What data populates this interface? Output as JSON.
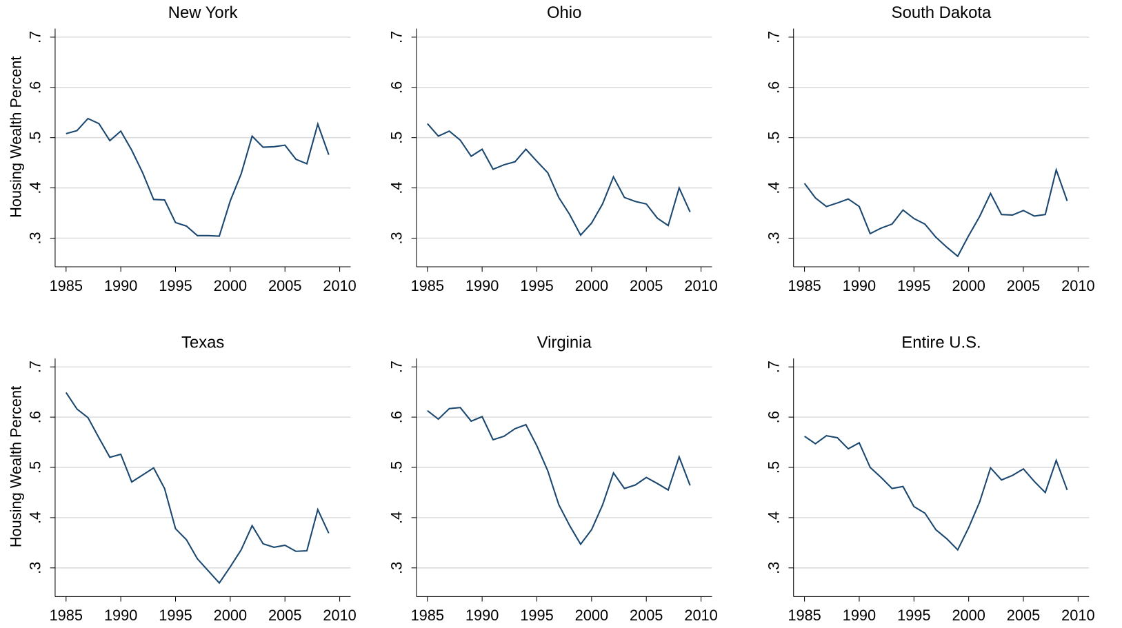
{
  "chart_data": [
    {
      "type": "line",
      "title": "New York",
      "ylabel": "Housing Wealth Percent",
      "color": "#1a476f",
      "grid": true,
      "x": [
        1985,
        1986,
        1987,
        1988,
        1989,
        1990,
        1991,
        1992,
        1993,
        1994,
        1995,
        1996,
        1997,
        1998,
        1999,
        2000,
        2001,
        2002,
        2003,
        2004,
        2005,
        2006,
        2007,
        2008,
        2009
      ],
      "values": [
        0.508,
        0.514,
        0.538,
        0.528,
        0.494,
        0.513,
        0.475,
        0.43,
        0.377,
        0.376,
        0.331,
        0.324,
        0.305,
        0.305,
        0.304,
        0.374,
        0.428,
        0.503,
        0.481,
        0.482,
        0.485,
        0.457,
        0.448,
        0.527,
        0.466
      ],
      "xlim": [
        1984,
        2011
      ],
      "xticks": [
        1985,
        1990,
        1995,
        2000,
        2005,
        2010
      ],
      "ylim": [
        0.243,
        0.717
      ],
      "yticks": [
        {
          "value": 0.3,
          "label": ".3"
        },
        {
          "value": 0.4,
          "label": ".4"
        },
        {
          "value": 0.5,
          "label": ".5"
        },
        {
          "value": 0.6,
          "label": ".6"
        },
        {
          "value": 0.7,
          "label": ".7"
        }
      ]
    },
    {
      "type": "line",
      "title": "Ohio",
      "color": "#1a476f",
      "grid": true,
      "x": [
        1985,
        1986,
        1987,
        1988,
        1989,
        1990,
        1991,
        1992,
        1993,
        1994,
        1995,
        1996,
        1997,
        1998,
        1999,
        2000,
        2001,
        2002,
        2003,
        2004,
        2005,
        2006,
        2007,
        2008,
        2009
      ],
      "values": [
        0.528,
        0.503,
        0.513,
        0.495,
        0.463,
        0.477,
        0.437,
        0.446,
        0.452,
        0.477,
        0.453,
        0.43,
        0.381,
        0.347,
        0.306,
        0.33,
        0.368,
        0.422,
        0.381,
        0.373,
        0.368,
        0.34,
        0.325,
        0.4,
        0.352
      ],
      "xlim": [
        1984,
        2011
      ],
      "xticks": [
        1985,
        1990,
        1995,
        2000,
        2005,
        2010
      ],
      "ylim": [
        0.243,
        0.717
      ],
      "yticks": [
        {
          "value": 0.3,
          "label": ".3"
        },
        {
          "value": 0.4,
          "label": ".4"
        },
        {
          "value": 0.5,
          "label": ".5"
        },
        {
          "value": 0.6,
          "label": ".6"
        },
        {
          "value": 0.7,
          "label": ".7"
        }
      ]
    },
    {
      "type": "line",
      "title": "South Dakota",
      "color": "#1a476f",
      "grid": true,
      "x": [
        1985,
        1986,
        1987,
        1988,
        1989,
        1990,
        1991,
        1992,
        1993,
        1994,
        1995,
        1996,
        1997,
        1998,
        1999,
        2000,
        2001,
        2002,
        2003,
        2004,
        2005,
        2006,
        2007,
        2008,
        2009
      ],
      "values": [
        0.409,
        0.38,
        0.363,
        0.37,
        0.378,
        0.363,
        0.309,
        0.32,
        0.328,
        0.356,
        0.339,
        0.328,
        0.302,
        0.282,
        0.264,
        0.305,
        0.343,
        0.389,
        0.347,
        0.346,
        0.355,
        0.344,
        0.347,
        0.436,
        0.374
      ],
      "xlim": [
        1984,
        2011
      ],
      "xticks": [
        1985,
        1990,
        1995,
        2000,
        2005,
        2010
      ],
      "ylim": [
        0.243,
        0.717
      ],
      "yticks": [
        {
          "value": 0.3,
          "label": ".3"
        },
        {
          "value": 0.4,
          "label": ".4"
        },
        {
          "value": 0.5,
          "label": ".5"
        },
        {
          "value": 0.6,
          "label": ".6"
        },
        {
          "value": 0.7,
          "label": ".7"
        }
      ]
    },
    {
      "type": "line",
      "title": "Texas",
      "ylabel": "Housing Wealth Percent",
      "color": "#1a476f",
      "grid": true,
      "x": [
        1985,
        1986,
        1987,
        1988,
        1989,
        1990,
        1991,
        1992,
        1993,
        1994,
        1995,
        1996,
        1997,
        1998,
        1999,
        2000,
        2001,
        2002,
        2003,
        2004,
        2005,
        2006,
        2007,
        2008,
        2009
      ],
      "values": [
        0.649,
        0.616,
        0.599,
        0.559,
        0.52,
        0.526,
        0.471,
        0.485,
        0.499,
        0.458,
        0.378,
        0.356,
        0.318,
        0.294,
        0.27,
        0.302,
        0.336,
        0.384,
        0.348,
        0.341,
        0.345,
        0.333,
        0.334,
        0.416,
        0.369
      ],
      "xlim": [
        1984,
        2011
      ],
      "xticks": [
        1985,
        1990,
        1995,
        2000,
        2005,
        2010
      ],
      "ylim": [
        0.243,
        0.717
      ],
      "yticks": [
        {
          "value": 0.3,
          "label": ".3"
        },
        {
          "value": 0.4,
          "label": ".4"
        },
        {
          "value": 0.5,
          "label": ".5"
        },
        {
          "value": 0.6,
          "label": ".6"
        },
        {
          "value": 0.7,
          "label": ".7"
        }
      ]
    },
    {
      "type": "line",
      "title": "Virginia",
      "color": "#1a476f",
      "grid": true,
      "x": [
        1985,
        1986,
        1987,
        1988,
        1989,
        1990,
        1991,
        1992,
        1993,
        1994,
        1995,
        1996,
        1997,
        1998,
        1999,
        2000,
        2001,
        2002,
        2003,
        2004,
        2005,
        2006,
        2007,
        2008,
        2009
      ],
      "values": [
        0.613,
        0.596,
        0.617,
        0.619,
        0.592,
        0.601,
        0.555,
        0.562,
        0.577,
        0.585,
        0.543,
        0.493,
        0.426,
        0.384,
        0.347,
        0.376,
        0.425,
        0.489,
        0.458,
        0.465,
        0.48,
        0.468,
        0.455,
        0.521,
        0.464
      ],
      "xlim": [
        1984,
        2011
      ],
      "xticks": [
        1985,
        1990,
        1995,
        2000,
        2005,
        2010
      ],
      "ylim": [
        0.243,
        0.717
      ],
      "yticks": [
        {
          "value": 0.3,
          "label": ".3"
        },
        {
          "value": 0.4,
          "label": ".4"
        },
        {
          "value": 0.5,
          "label": ".5"
        },
        {
          "value": 0.6,
          "label": ".6"
        },
        {
          "value": 0.7,
          "label": ".7"
        }
      ]
    },
    {
      "type": "line",
      "title": "Entire U.S.",
      "color": "#1a476f",
      "grid": true,
      "x": [
        1985,
        1986,
        1987,
        1988,
        1989,
        1990,
        1991,
        1992,
        1993,
        1994,
        1995,
        1996,
        1997,
        1998,
        1999,
        2000,
        2001,
        2002,
        2003,
        2004,
        2005,
        2006,
        2007,
        2008,
        2009
      ],
      "values": [
        0.562,
        0.547,
        0.563,
        0.559,
        0.537,
        0.549,
        0.5,
        0.48,
        0.458,
        0.462,
        0.422,
        0.409,
        0.376,
        0.358,
        0.336,
        0.38,
        0.431,
        0.499,
        0.475,
        0.484,
        0.497,
        0.472,
        0.45,
        0.514,
        0.455
      ],
      "xlim": [
        1984,
        2011
      ],
      "xticks": [
        1985,
        1990,
        1995,
        2000,
        2005,
        2010
      ],
      "ylim": [
        0.243,
        0.717
      ],
      "yticks": [
        {
          "value": 0.3,
          "label": ".3"
        },
        {
          "value": 0.4,
          "label": ".4"
        },
        {
          "value": 0.5,
          "label": ".5"
        },
        {
          "value": 0.6,
          "label": ".6"
        },
        {
          "value": 0.7,
          "label": ".7"
        }
      ]
    }
  ]
}
